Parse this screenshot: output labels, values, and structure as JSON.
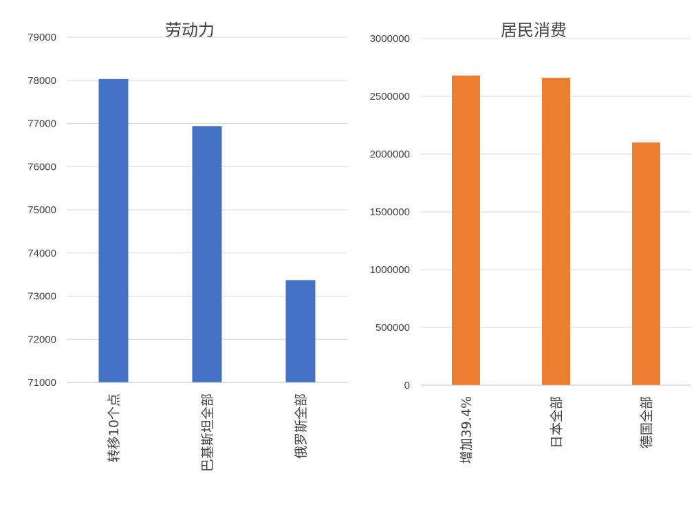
{
  "chart_data": [
    {
      "type": "bar",
      "title": "劳动力",
      "categories": [
        "转移10个点",
        "巴基斯坦全部",
        "俄罗斯全部"
      ],
      "values": [
        78030,
        76940,
        73370
      ],
      "ylim": [
        71000,
        79000
      ],
      "yticks": [
        "79000",
        "78000",
        "77000",
        "76000",
        "75000",
        "74000",
        "73000",
        "72000",
        "71000"
      ],
      "grid": true,
      "color": "#4472C4"
    },
    {
      "type": "bar",
      "title": "居民消费",
      "categories": [
        "增加39.4%",
        "日本全部",
        "德国全部"
      ],
      "values": [
        2680000,
        2660000,
        2100000
      ],
      "ylim": [
        0,
        3000000
      ],
      "yticks": [
        "3000000",
        "2500000",
        "2000000",
        "1500000",
        "1000000",
        "500000",
        "0"
      ],
      "grid": true,
      "color": "#ED7D31"
    }
  ]
}
